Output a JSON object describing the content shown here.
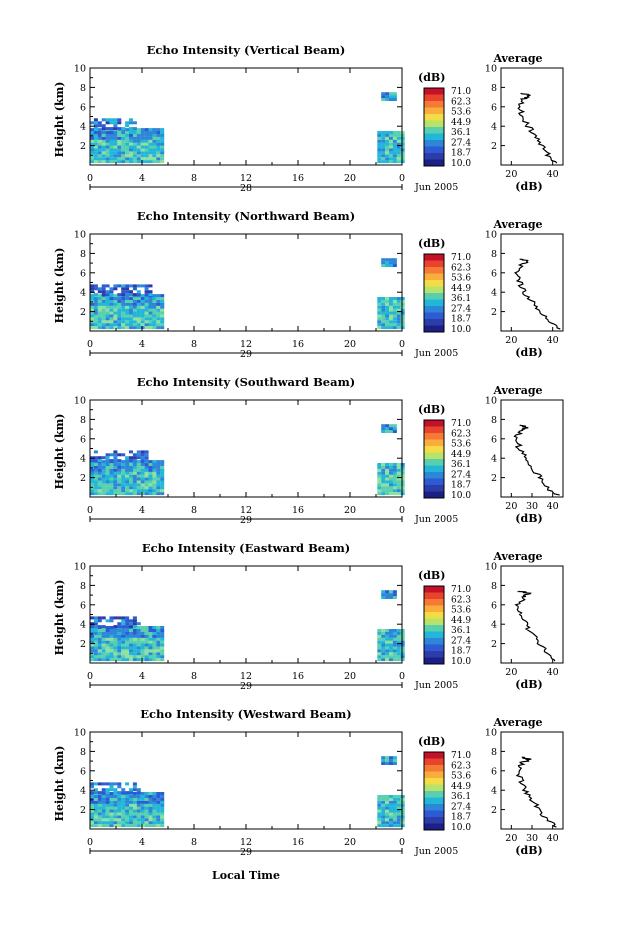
{
  "figure": {
    "x_axis_label": "Local Time",
    "date_label": "Jun 2005",
    "colorbar_unit": "(dB)",
    "colorbar_levels": [
      "71.0",
      "62.3",
      "53.6",
      "44.9",
      "36.1",
      "27.4",
      "18.7",
      "10.0"
    ],
    "colorbar_colors": [
      "#c5102a",
      "#e8432c",
      "#f67a36",
      "#f8ad3c",
      "#f3dc45",
      "#b8e26a",
      "#58d0b0",
      "#22b6d8",
      "#2e86d8",
      "#2e5bd3",
      "#2c3ca8",
      "#1b1f86"
    ],
    "time_ticks": [
      "0",
      "4",
      "8",
      "12",
      "16",
      "20",
      "0"
    ],
    "height_ticks": [
      "2",
      "4",
      "6",
      "8",
      "10"
    ],
    "height_label": "Height (km)",
    "avg_title": "Average",
    "avg_unit": "(dB)"
  },
  "chart_data": [
    {
      "type": "heatmap",
      "title": "Echo Intensity (Vertical Beam)",
      "day_label": "28",
      "ylabel": "Height (km)",
      "ylim": [
        0,
        10
      ],
      "xlim": [
        0,
        24
      ],
      "avg_ticks": [
        "20",
        "40"
      ],
      "avg_xlim": [
        15,
        45
      ],
      "data_blocks": [
        {
          "t0": 0,
          "t1": 5.4,
          "h0": 0.2,
          "h1": 2.6,
          "level": "high"
        },
        {
          "t0": 0,
          "t1": 5.4,
          "h0": 2.6,
          "h1": 3.6,
          "level": "mid"
        },
        {
          "t0": 0,
          "t1": 3.5,
          "h0": 3.6,
          "h1": 4.6,
          "level": "low"
        },
        {
          "t0": 22.1,
          "t1": 24,
          "h0": 0.2,
          "h1": 3.4,
          "level": "high"
        },
        {
          "t0": 22.4,
          "t1": 23.6,
          "h0": 6.6,
          "h1": 7.4,
          "level": "mid"
        }
      ],
      "profile": [
        [
          42,
          0.2
        ],
        [
          38,
          1
        ],
        [
          35,
          2
        ],
        [
          32,
          3
        ],
        [
          28,
          4
        ],
        [
          25,
          5
        ],
        [
          24,
          6
        ],
        [
          26,
          6.8
        ],
        [
          29,
          7.2
        ],
        [
          25,
          7.4
        ]
      ]
    },
    {
      "type": "heatmap",
      "title": "Echo Intensity (Northward Beam)",
      "day_label": "29",
      "ylabel": "Height (km)",
      "ylim": [
        0,
        10
      ],
      "xlim": [
        0,
        24
      ],
      "avg_ticks": [
        "20",
        "40"
      ],
      "avg_xlim": [
        15,
        45
      ],
      "data_blocks": [
        {
          "t0": 0,
          "t1": 5.4,
          "h0": 0.2,
          "h1": 2.6,
          "level": "high"
        },
        {
          "t0": 0,
          "t1": 5.4,
          "h0": 2.6,
          "h1": 3.6,
          "level": "mid"
        },
        {
          "t0": 0,
          "t1": 4.5,
          "h0": 3.6,
          "h1": 4.8,
          "level": "low"
        },
        {
          "t0": 22.1,
          "t1": 24,
          "h0": 0.2,
          "h1": 3.4,
          "level": "high"
        },
        {
          "t0": 22.4,
          "t1": 23.6,
          "h0": 6.6,
          "h1": 7.4,
          "level": "mid"
        }
      ],
      "profile": [
        [
          43,
          0.2
        ],
        [
          38,
          1
        ],
        [
          34,
          2
        ],
        [
          30,
          3
        ],
        [
          26,
          4
        ],
        [
          24,
          5
        ],
        [
          23,
          6
        ],
        [
          25,
          6.8
        ],
        [
          28,
          7.2
        ],
        [
          24,
          7.4
        ]
      ]
    },
    {
      "type": "heatmap",
      "title": "Echo Intensity (Southward Beam)",
      "day_label": "29",
      "ylabel": "Height (km)",
      "ylim": [
        0,
        10
      ],
      "xlim": [
        0,
        24
      ],
      "avg_ticks": [
        "20",
        "30",
        "40"
      ],
      "avg_xlim": [
        15,
        45
      ],
      "data_blocks": [
        {
          "t0": 0,
          "t1": 5.4,
          "h0": 0.2,
          "h1": 2.6,
          "level": "high"
        },
        {
          "t0": 0,
          "t1": 5.4,
          "h0": 2.6,
          "h1": 3.6,
          "level": "mid"
        },
        {
          "t0": 0,
          "t1": 4.2,
          "h0": 3.6,
          "h1": 4.8,
          "level": "low"
        },
        {
          "t0": 22.1,
          "t1": 24,
          "h0": 0.2,
          "h1": 3.4,
          "level": "high"
        },
        {
          "t0": 22.4,
          "t1": 23.6,
          "h0": 6.6,
          "h1": 7.4,
          "level": "mid"
        }
      ],
      "profile": [
        [
          42,
          0.2
        ],
        [
          37,
          1
        ],
        [
          34,
          2
        ],
        [
          30,
          3
        ],
        [
          27,
          4
        ],
        [
          24,
          5
        ],
        [
          22,
          6
        ],
        [
          25,
          6.8
        ],
        [
          28,
          7.2
        ],
        [
          24,
          7.4
        ]
      ]
    },
    {
      "type": "heatmap",
      "title": "Echo Intensity (Eastward Beam)",
      "day_label": "29",
      "ylabel": "Height (km)",
      "ylim": [
        0,
        10
      ],
      "xlim": [
        0,
        24
      ],
      "avg_ticks": [
        "20",
        "40"
      ],
      "avg_xlim": [
        15,
        45
      ],
      "data_blocks": [
        {
          "t0": 0,
          "t1": 5.4,
          "h0": 0.2,
          "h1": 2.6,
          "level": "high"
        },
        {
          "t0": 0,
          "t1": 5.4,
          "h0": 2.6,
          "h1": 3.6,
          "level": "mid"
        },
        {
          "t0": 0,
          "t1": 3.8,
          "h0": 3.6,
          "h1": 4.8,
          "level": "low"
        },
        {
          "t0": 22.1,
          "t1": 24,
          "h0": 0.2,
          "h1": 3.4,
          "level": "high"
        },
        {
          "t0": 22.4,
          "t1": 23.6,
          "h0": 6.6,
          "h1": 7.4,
          "level": "mid"
        }
      ],
      "profile": [
        [
          42,
          0.2
        ],
        [
          38,
          1
        ],
        [
          34,
          2
        ],
        [
          30,
          3
        ],
        [
          27,
          4
        ],
        [
          24,
          5
        ],
        [
          23,
          6
        ],
        [
          26,
          6.8
        ],
        [
          28,
          7.2
        ],
        [
          24,
          7.4
        ]
      ]
    },
    {
      "type": "heatmap",
      "title": "Echo Intensity (Westward Beam)",
      "day_label": "29",
      "ylabel": "Height (km)",
      "ylim": [
        0,
        10
      ],
      "xlim": [
        0,
        24
      ],
      "avg_ticks": [
        "20",
        "30",
        "40"
      ],
      "avg_xlim": [
        15,
        45
      ],
      "data_blocks": [
        {
          "t0": 0,
          "t1": 5.4,
          "h0": 0.2,
          "h1": 2.6,
          "level": "high"
        },
        {
          "t0": 0,
          "t1": 5.4,
          "h0": 2.6,
          "h1": 3.6,
          "level": "mid"
        },
        {
          "t0": 0,
          "t1": 3.6,
          "h0": 3.6,
          "h1": 4.6,
          "level": "low"
        },
        {
          "t0": 22.1,
          "t1": 24,
          "h0": 0.2,
          "h1": 3.4,
          "level": "high"
        },
        {
          "t0": 22.4,
          "t1": 23.6,
          "h0": 6.6,
          "h1": 7.4,
          "level": "mid"
        }
      ],
      "profile": [
        [
          42,
          0.2
        ],
        [
          37,
          1
        ],
        [
          33,
          2
        ],
        [
          30,
          3
        ],
        [
          27,
          4
        ],
        [
          25,
          5
        ],
        [
          23,
          6
        ],
        [
          25,
          6.8
        ],
        [
          29,
          7.2
        ],
        [
          25,
          7.4
        ]
      ]
    }
  ]
}
